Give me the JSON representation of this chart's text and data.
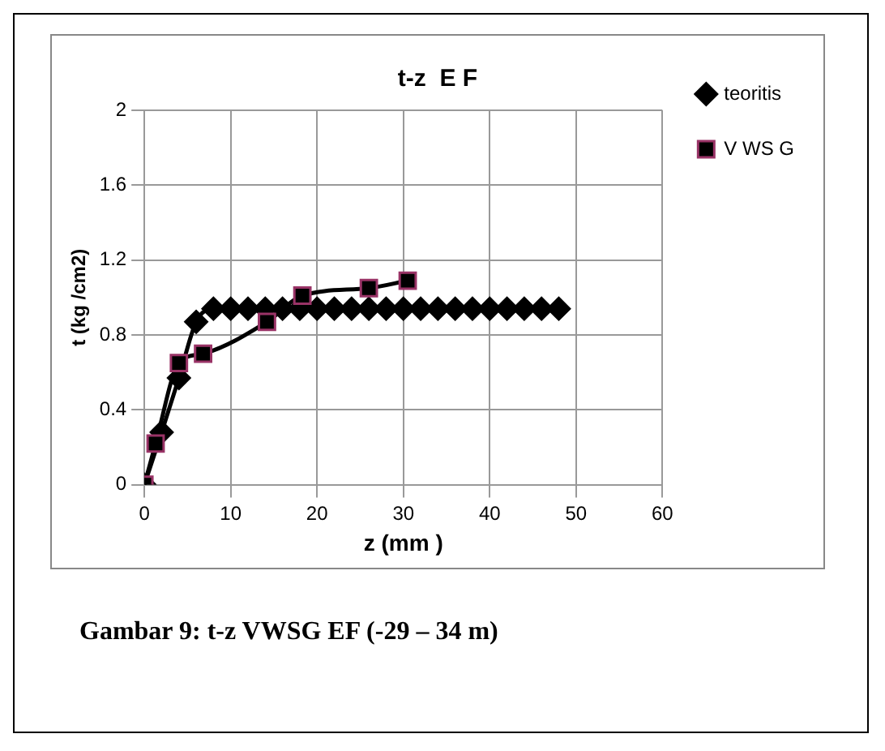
{
  "chart_data": {
    "type": "line",
    "title": "t-z  E F",
    "xlabel": "z (mm )",
    "ylabel": "t (kg /cm2)",
    "xlim": [
      0,
      60
    ],
    "xticks": [
      0,
      10,
      20,
      30,
      40,
      50,
      60
    ],
    "ylim": [
      0,
      2
    ],
    "yticks": [
      0,
      0.4,
      0.8,
      1.2,
      1.6,
      2
    ],
    "grid": true,
    "legend": "right",
    "series": [
      {
        "name": "teoritis",
        "color": "#000000",
        "marker": "diamond",
        "x": [
          0,
          2,
          4,
          6,
          8,
          10,
          12,
          14,
          16,
          18,
          20,
          22,
          24,
          26,
          28,
          30,
          32,
          34,
          36,
          38,
          40,
          42,
          44,
          46,
          48
        ],
        "values": [
          0,
          0.28,
          0.57,
          0.87,
          0.94,
          0.94,
          0.94,
          0.94,
          0.94,
          0.94,
          0.94,
          0.94,
          0.94,
          0.94,
          0.94,
          0.94,
          0.94,
          0.94,
          0.94,
          0.94,
          0.94,
          0.94,
          0.94,
          0.94,
          0.94
        ]
      },
      {
        "name": "V WS G",
        "color": "#000000",
        "marker": "square",
        "x": [
          0,
          1.3,
          4,
          6.8,
          14.2,
          18.3,
          26,
          30.5
        ],
        "values": [
          0,
          0.22,
          0.65,
          0.7,
          0.87,
          1.01,
          1.05,
          1.09
        ]
      }
    ],
    "annotations": [
      "Gambar  9: t-z VWSG EF (-29 – 34 m)"
    ]
  }
}
